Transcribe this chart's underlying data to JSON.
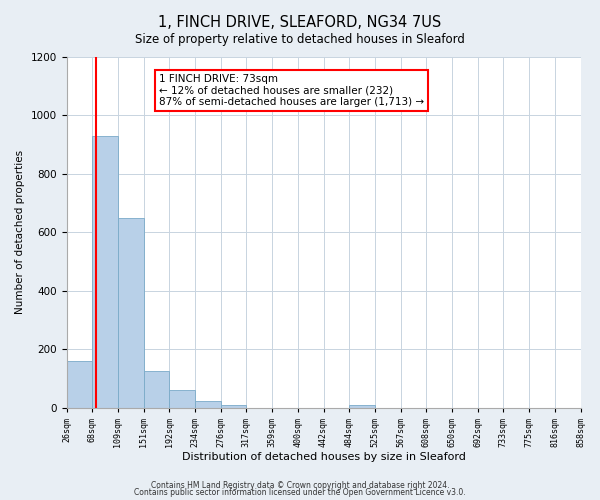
{
  "title": "1, FINCH DRIVE, SLEAFORD, NG34 7US",
  "subtitle": "Size of property relative to detached houses in Sleaford",
  "xlabel": "Distribution of detached houses by size in Sleaford",
  "ylabel": "Number of detached properties",
  "bin_labels": [
    "26sqm",
    "68sqm",
    "109sqm",
    "151sqm",
    "192sqm",
    "234sqm",
    "276sqm",
    "317sqm",
    "359sqm",
    "400sqm",
    "442sqm",
    "484sqm",
    "525sqm",
    "567sqm",
    "608sqm",
    "650sqm",
    "692sqm",
    "733sqm",
    "775sqm",
    "816sqm",
    "858sqm"
  ],
  "bin_edges": [
    26,
    68,
    109,
    151,
    192,
    234,
    276,
    317,
    359,
    400,
    442,
    484,
    525,
    567,
    608,
    650,
    692,
    733,
    775,
    816,
    858
  ],
  "bar_heights": [
    160,
    930,
    650,
    125,
    60,
    25,
    10,
    0,
    0,
    0,
    0,
    10,
    0,
    0,
    0,
    0,
    0,
    0,
    0,
    0
  ],
  "bar_color": "#b8d0e8",
  "bar_edgecolor": "#7aaac8",
  "property_line_x": 73,
  "property_line_color": "red",
  "annotation_title": "1 FINCH DRIVE: 73sqm",
  "annotation_line1": "← 12% of detached houses are smaller (232)",
  "annotation_line2": "87% of semi-detached houses are larger (1,713) →",
  "annotation_box_facecolor": "white",
  "annotation_box_edgecolor": "red",
  "ylim": [
    0,
    1200
  ],
  "yticks": [
    0,
    200,
    400,
    600,
    800,
    1000,
    1200
  ],
  "footnote1": "Contains HM Land Registry data © Crown copyright and database right 2024.",
  "footnote2": "Contains public sector information licensed under the Open Government Licence v3.0.",
  "background_color": "#e8eef4",
  "plot_background": "white",
  "grid_color": "#c8d4e0"
}
